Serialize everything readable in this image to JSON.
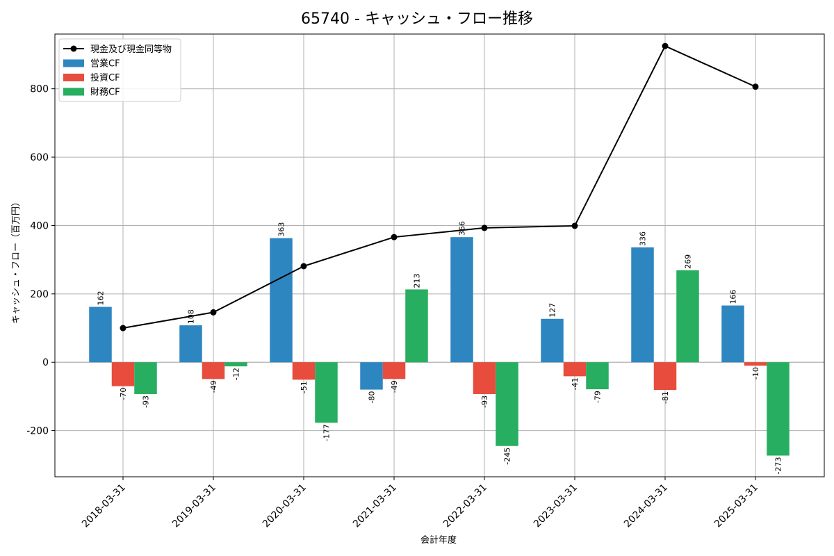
{
  "chart_data": {
    "type": "bar",
    "title": "65740 - キャッシュ・フロー推移",
    "xlabel": "会計年度",
    "ylabel": "キャッシュ・フロー（百万円）",
    "categories": [
      "2018-03-31",
      "2019-03-31",
      "2020-03-31",
      "2021-03-31",
      "2022-03-31",
      "2023-03-31",
      "2024-03-31",
      "2025-03-31"
    ],
    "ylim": [
      -335,
      960
    ],
    "yticks": [
      -200,
      0,
      200,
      400,
      600,
      800
    ],
    "grid": true,
    "legend_position": "top-left",
    "series": [
      {
        "name": "営業CF",
        "kind": "bar",
        "color": "#2e86c1",
        "values": [
          162,
          108,
          363,
          -80,
          366,
          127,
          336,
          166
        ]
      },
      {
        "name": "投資CF",
        "kind": "bar",
        "color": "#e74c3c",
        "values": [
          -70,
          -49,
          -51,
          -49,
          -93,
          -41,
          -81,
          -10
        ]
      },
      {
        "name": "財務CF",
        "kind": "bar",
        "color": "#27ae60",
        "values": [
          -93,
          -12,
          -177,
          213,
          -245,
          -79,
          269,
          -273
        ]
      },
      {
        "name": "現金及び現金同等物",
        "kind": "line",
        "color": "#000000",
        "values": [
          100,
          146,
          281,
          366,
          393,
          399,
          925,
          806
        ]
      }
    ]
  }
}
